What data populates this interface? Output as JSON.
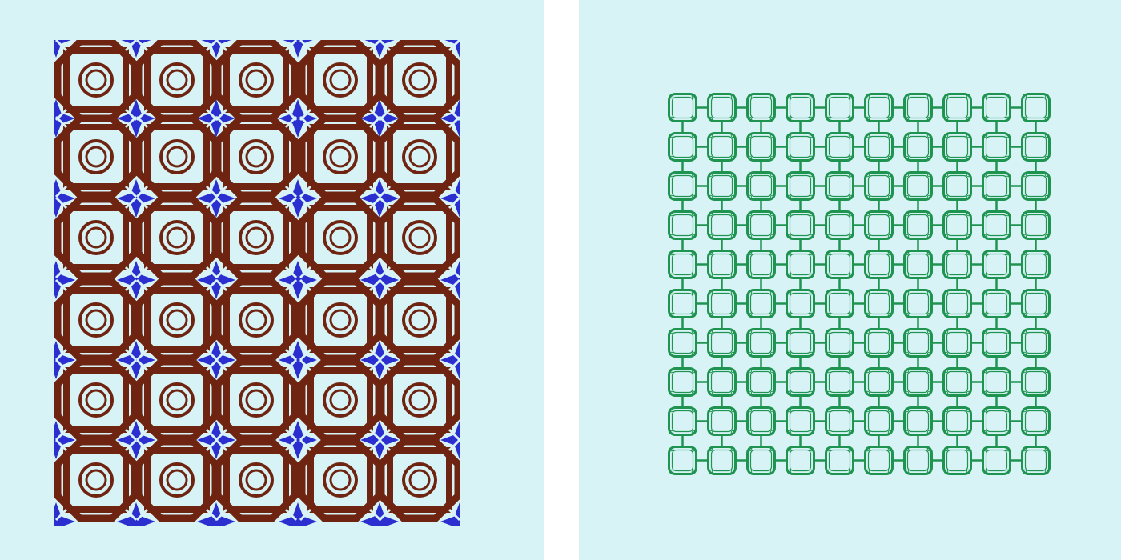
{
  "colors": {
    "background": "#d8f3f6",
    "gap": "#ffffff",
    "brown_motif": "#6e2410",
    "blue_star": "#2b2fd0",
    "green_chain": "#1f9450"
  },
  "panels": [
    {
      "name": "left-panel",
      "pattern": "octagon-square-rosette-tile",
      "motifs": [
        "octagon-frame",
        "square-frame",
        "concentric-rings",
        "four-point-star"
      ],
      "columns": 5,
      "rows": 6
    },
    {
      "name": "right-panel",
      "pattern": "interlocking-rounded-square-chain",
      "motifs": [
        "rounded-square-link",
        "connector-bar"
      ],
      "columns": 10,
      "rows": 10
    }
  ]
}
